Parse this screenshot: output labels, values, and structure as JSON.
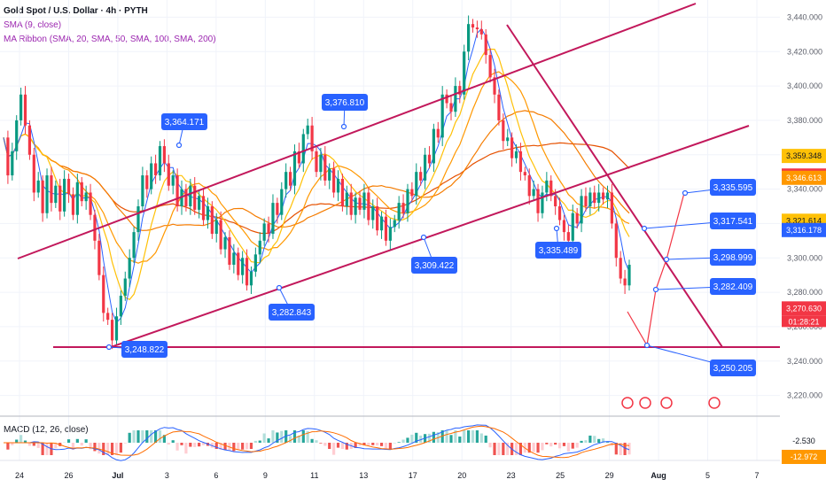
{
  "legend": {
    "title": "Gold Spot / U.S. Dollar · 4h · PYTH",
    "sma": "SMA (9, close)",
    "ribbon": "MA Ribbon (SMA, 20, SMA, 50, SMA, 100, SMA, 200)",
    "macd": "MACD (12, 26, close)"
  },
  "colors": {
    "up": "#089981",
    "down": "#f23645",
    "trendline": "#c2185b",
    "callout": "#2962ff",
    "sma9": "#2962ff",
    "ma20": "#ffc107",
    "ma50": "#ff9800",
    "ma100": "#f57c00",
    "ma200": "#e65100"
  },
  "chart_data": {
    "type": "candlestick",
    "y_axis": {
      "range": [
        3210,
        3450
      ],
      "ticks": [
        "3,440.000",
        "3,420.000",
        "3,400.000",
        "3,380.000",
        "3,360.000",
        "3,340.000",
        "3,320.000",
        "3,300.000",
        "3,280.000",
        "3,260.000",
        "3,240.000",
        "3,220.000"
      ]
    },
    "x_axis": {
      "ticks": [
        "24",
        "26",
        "Jul",
        "3",
        "6",
        "9",
        "11",
        "13",
        "17",
        "20",
        "23",
        "25",
        "29",
        "Aug",
        "5",
        "7"
      ]
    },
    "candles_y": [
      3370,
      3348,
      3362,
      3380,
      3395,
      3377,
      3360,
      3338,
      3345,
      3326,
      3348,
      3332,
      3342,
      3327,
      3346,
      3337,
      3325,
      3344,
      3333,
      3338,
      3325,
      3310,
      3290,
      3268,
      3264,
      3252,
      3266,
      3278,
      3288,
      3300,
      3315,
      3330,
      3348,
      3340,
      3355,
      3348,
      3365,
      3355,
      3342,
      3348,
      3330,
      3340,
      3330,
      3342,
      3328,
      3336,
      3322,
      3330,
      3314,
      3322,
      3305,
      3312,
      3296,
      3303,
      3290,
      3300,
      3284,
      3292,
      3302,
      3310,
      3320,
      3314,
      3332,
      3325,
      3340,
      3350,
      3342,
      3362,
      3355,
      3372,
      3377,
      3362,
      3350,
      3360,
      3345,
      3352,
      3338,
      3346,
      3330,
      3338,
      3325,
      3335,
      3328,
      3338,
      3322,
      3330,
      3316,
      3324,
      3310,
      3318,
      3322,
      3332,
      3326,
      3340,
      3336,
      3350,
      3345,
      3360,
      3355,
      3375,
      3370,
      3395,
      3390,
      3385,
      3400,
      3395,
      3420,
      3436,
      3434,
      3433,
      3430,
      3418,
      3405,
      3395,
      3380,
      3368,
      3370,
      3358,
      3362,
      3350,
      3348,
      3336,
      3340,
      3326,
      3338,
      3345,
      3336,
      3330,
      3322,
      3315,
      3310,
      3326,
      3320,
      3336,
      3330,
      3338,
      3332,
      3338,
      3334,
      3338,
      3320,
      3300,
      3288,
      3284,
      3296
    ],
    "macd_label": "-2.530",
    "signal_label": "-12.972",
    "price_labels": [
      {
        "value": "3,359.348",
        "price": 3359.3,
        "color": "#ffc107",
        "text_color": "#131722"
      },
      {
        "value": "3,347.881",
        "price": 3347.9,
        "color": "#f23645",
        "text_color": "#ffffff"
      },
      {
        "value": "3,346.613",
        "price": 3346.6,
        "color": "#ff9800",
        "text_color": "#ffffff"
      },
      {
        "value": "3,321.614",
        "price": 3321.6,
        "color": "#ffc107",
        "text_color": "#131722"
      },
      {
        "value": "3,316.178",
        "price": 3316.2,
        "color": "#2962ff",
        "text_color": "#ffffff"
      },
      {
        "value": "3,270.630",
        "price": 3270.6,
        "color": "#f23645",
        "text_color": "#ffffff"
      }
    ],
    "countdown": "01:28:21",
    "callouts": [
      {
        "text": "3,364.171",
        "price": 3364.2
      },
      {
        "text": "3,376.810",
        "price": 3376.8
      },
      {
        "text": "3,282.843",
        "price": 3282.8
      },
      {
        "text": "3,309.422",
        "price": 3309.4
      },
      {
        "text": "3,335.489",
        "price": 3335.5
      },
      {
        "text": "3,248.822",
        "price": 3248.8
      },
      {
        "text": "3,335.595",
        "price": 3335.6
      },
      {
        "text": "3,317.541",
        "price": 3317.5
      },
      {
        "text": "3,298.999",
        "price": 3299.0
      },
      {
        "text": "3,282.409",
        "price": 3282.4
      },
      {
        "text": "3,250.205",
        "price": 3250.2
      }
    ]
  }
}
